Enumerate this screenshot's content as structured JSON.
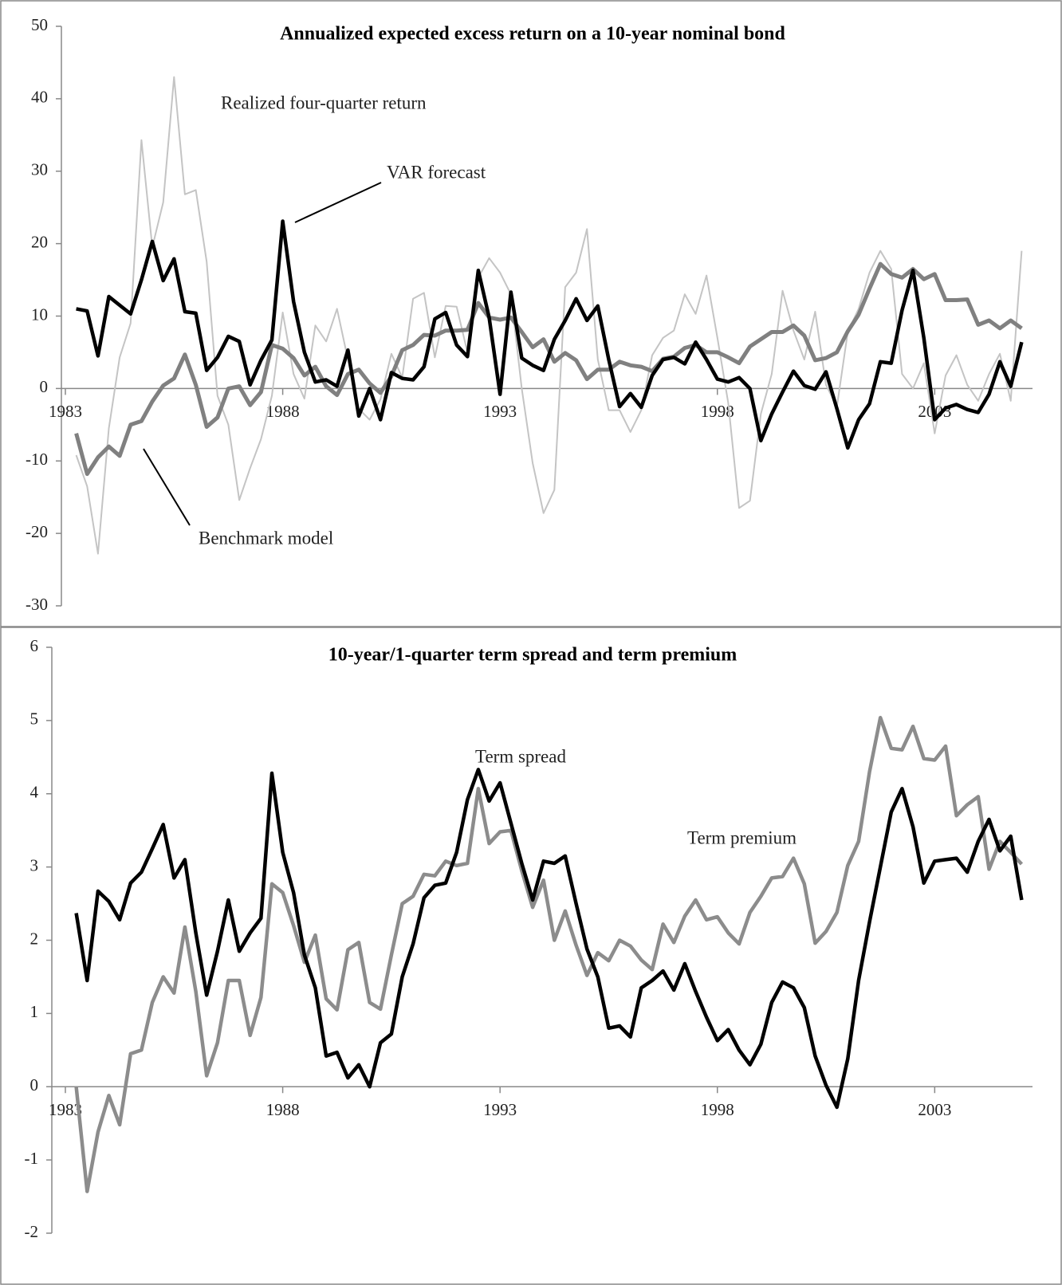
{
  "chart_data": [
    {
      "type": "line",
      "title": "Annualized expected excess return on a 10-year nominal bond",
      "x": [
        1983.25,
        1983.5,
        1983.75,
        1984,
        1984.25,
        1984.5,
        1984.75,
        1985,
        1985.25,
        1985.5,
        1985.75,
        1986,
        1986.25,
        1986.5,
        1986.75,
        1987,
        1987.25,
        1987.5,
        1987.75,
        1988,
        1988.25,
        1988.5,
        1988.75,
        1989,
        1989.25,
        1989.5,
        1989.75,
        1990,
        1990.25,
        1990.5,
        1990.75,
        1991,
        1991.25,
        1991.5,
        1991.75,
        1992,
        1992.25,
        1992.5,
        1992.75,
        1993,
        1993.25,
        1993.5,
        1993.75,
        1994,
        1994.25,
        1994.5,
        1994.75,
        1995,
        1995.25,
        1995.5,
        1995.75,
        1996,
        1996.25,
        1996.5,
        1996.75,
        1997,
        1997.25,
        1997.5,
        1997.75,
        1998,
        1998.25,
        1998.5,
        1998.75,
        1999,
        1999.25,
        1999.5,
        1999.75,
        2000,
        2000.25,
        2000.5,
        2000.75,
        2001,
        2001.25,
        2001.5,
        2001.75,
        2002,
        2002.25,
        2002.5,
        2002.75,
        2003,
        2003.25,
        2003.5,
        2003.75,
        2004,
        2004.25,
        2004.5,
        2004.75,
        2005
      ],
      "xlim": [
        1983,
        2005.25
      ],
      "xticks": [
        1983,
        1988,
        1993,
        1998,
        2003
      ],
      "ylim": [
        -30,
        50
      ],
      "yticks": [
        -30,
        -20,
        -10,
        0,
        10,
        20,
        30,
        40,
        50
      ],
      "series": [
        {
          "name": "Realized four-quarter return",
          "color": "#c4c4c4",
          "values": [
            -9.2,
            -13.5,
            -22.8,
            -5.5,
            4.3,
            9,
            34.3,
            19.5,
            25.7,
            43,
            26.8,
            27.4,
            17.5,
            -1,
            -5,
            -15.4,
            -11,
            -7,
            -1,
            10.5,
            2,
            -1.4,
            8.7,
            6.5,
            11,
            4,
            -2.8,
            -4.3,
            -1.5,
            4.8,
            1.5,
            12.4,
            13.2,
            4.3,
            11.4,
            11.3,
            5,
            15.3,
            18,
            16,
            13,
            0,
            -10.3,
            -17.2,
            -14,
            14,
            16,
            22,
            4,
            -3,
            -3,
            -6,
            -3,
            4.6,
            7,
            8,
            13,
            10.3,
            15.6,
            7,
            -2,
            -16.5,
            -15.5,
            -3.5,
            2,
            13.5,
            8,
            4,
            10.6,
            0.5,
            -2.5,
            7.8,
            11,
            16,
            19,
            16.5,
            2,
            0,
            3.5,
            -6.2,
            1.8,
            4.6,
            0.5,
            -1.7,
            2,
            4.8,
            -1.7,
            19
          ]
        },
        {
          "name": "Benchmark model",
          "color": "#808080",
          "values": [
            -6.2,
            -11.8,
            -9.5,
            -8,
            -9.3,
            -5,
            -4.5,
            -1.8,
            0.4,
            1.4,
            4.7,
            0.5,
            -5.3,
            -4,
            0,
            0.3,
            -2.3,
            -0.5,
            6,
            5.5,
            4.2,
            1.8,
            3,
            0.3,
            -0.9,
            2,
            2.6,
            0.7,
            -0.6,
            1.7,
            5.3,
            6,
            7.4,
            7.3,
            8,
            8,
            8.1,
            11.8,
            9.8,
            9.5,
            9.8,
            7.8,
            5.7,
            6.8,
            3.7,
            4.9,
            3.9,
            1.3,
            2.6,
            2.6,
            3.7,
            3.2,
            3,
            2.4,
            4.1,
            4.4,
            5.6,
            6,
            5,
            5,
            4.3,
            3.5,
            5.8,
            6.8,
            7.8,
            7.8,
            8.7,
            7.3,
            3.9,
            4.2,
            5,
            7.9,
            10.2,
            13.8,
            17.2,
            15.8,
            15.3,
            16.5,
            15.1,
            15.8,
            12.2,
            12.2,
            12.3,
            8.8,
            9.4,
            8.3,
            9.4,
            8.3
          ]
        },
        {
          "name": "VAR forecast",
          "color": "#000000",
          "values": [
            11,
            10.7,
            4.5,
            12.7,
            11.5,
            10.3,
            15,
            20.3,
            14.9,
            17.9,
            10.6,
            10.4,
            2.5,
            4.3,
            7.2,
            6.5,
            0.5,
            3.9,
            6.7,
            23.1,
            12,
            5,
            0.9,
            1.2,
            0.3,
            5.3,
            -3.8,
            0,
            -4.3,
            2.2,
            1.4,
            1.2,
            3,
            9.6,
            10.5,
            6,
            4.4,
            16.3,
            9.8,
            -0.8,
            13.3,
            4.2,
            3.2,
            2.5,
            6.8,
            9.4,
            12.4,
            9.4,
            11.4,
            4,
            -2.5,
            -0.7,
            -2.6,
            1.8,
            4,
            4.3,
            3.4,
            6.4,
            4,
            1.3,
            0.9,
            1.5,
            0,
            -7.2,
            -3.5,
            -0.5,
            2.4,
            0.4,
            -0.1,
            2.3,
            -2.8,
            -8.2,
            -4.3,
            -2.1,
            3.7,
            3.5,
            10.8,
            16.3,
            7,
            -4.3,
            -2.7,
            -2.2,
            -2.9,
            -3.3,
            -0.8,
            3.7,
            0.3,
            6.4
          ]
        }
      ]
    },
    {
      "type": "line",
      "title": "10-year/1-quarter term spread and term premium",
      "x": [
        1983.25,
        1983.5,
        1983.75,
        1984,
        1984.25,
        1984.5,
        1984.75,
        1985,
        1985.25,
        1985.5,
        1985.75,
        1986,
        1986.25,
        1986.5,
        1986.75,
        1987,
        1987.25,
        1987.5,
        1987.75,
        1988,
        1988.25,
        1988.5,
        1988.75,
        1989,
        1989.25,
        1989.5,
        1989.75,
        1990,
        1990.25,
        1990.5,
        1990.75,
        1991,
        1991.25,
        1991.5,
        1991.75,
        1992,
        1992.25,
        1992.5,
        1992.75,
        1993,
        1993.25,
        1993.5,
        1993.75,
        1994,
        1994.25,
        1994.5,
        1994.75,
        1995,
        1995.25,
        1995.5,
        1995.75,
        1996,
        1996.25,
        1996.5,
        1996.75,
        1997,
        1997.25,
        1997.5,
        1997.75,
        1998,
        1998.25,
        1998.5,
        1998.75,
        1999,
        1999.25,
        1999.5,
        1999.75,
        2000,
        2000.25,
        2000.5,
        2000.75,
        2001,
        2001.25,
        2001.5,
        2001.75,
        2002,
        2002.25,
        2002.5,
        2002.75,
        2003,
        2003.25,
        2003.5,
        2003.75,
        2004,
        2004.25,
        2004.5,
        2004.75,
        2005
      ],
      "xlim": [
        1983,
        2005.25
      ],
      "xticks": [
        1983,
        1988,
        1993,
        1998,
        2003
      ],
      "ylim": [
        -2,
        6
      ],
      "yticks": [
        -2,
        -1,
        0,
        1,
        2,
        3,
        4,
        5,
        6
      ],
      "series": [
        {
          "name": "Term premium",
          "color": "#8c8c8c",
          "values": [
            0,
            -1.43,
            -0.62,
            -0.12,
            -0.52,
            0.45,
            0.5,
            1.15,
            1.5,
            1.28,
            2.18,
            1.3,
            0.15,
            0.6,
            1.45,
            1.45,
            0.7,
            1.22,
            2.77,
            2.65,
            2.2,
            1.7,
            2.07,
            1.2,
            1.05,
            1.87,
            1.97,
            1.15,
            1.06,
            1.8,
            2.5,
            2.6,
            2.9,
            2.88,
            3.08,
            3.02,
            3.05,
            4.07,
            3.32,
            3.48,
            3.5,
            2.95,
            2.45,
            2.82,
            2.0,
            2.4,
            1.93,
            1.52,
            1.83,
            1.72,
            2.0,
            1.92,
            1.73,
            1.6,
            2.22,
            1.97,
            2.33,
            2.55,
            2.28,
            2.32,
            2.1,
            1.95,
            2.38,
            2.6,
            2.85,
            2.87,
            3.12,
            2.77,
            1.96,
            2.12,
            2.38,
            3.02,
            3.35,
            4.3,
            5.04,
            4.62,
            4.6,
            4.92,
            4.48,
            4.46,
            4.65,
            3.7,
            3.85,
            3.96,
            2.97,
            3.35,
            3.2,
            3.04
          ]
        },
        {
          "name": "Term spread",
          "color": "#000000",
          "values": [
            2.37,
            1.45,
            2.67,
            2.53,
            2.28,
            2.78,
            2.93,
            3.25,
            3.58,
            2.85,
            3.1,
            2.1,
            1.25,
            1.85,
            2.55,
            1.85,
            2.1,
            2.3,
            4.28,
            3.2,
            2.65,
            1.8,
            1.35,
            0.42,
            0.47,
            0.12,
            0.3,
            0,
            0.6,
            0.72,
            1.5,
            1.95,
            2.58,
            2.75,
            2.78,
            3.2,
            3.92,
            4.33,
            3.9,
            4.15,
            3.6,
            3.05,
            2.55,
            3.08,
            3.05,
            3.15,
            2.5,
            1.88,
            1.5,
            0.8,
            0.83,
            0.68,
            1.35,
            1.45,
            1.58,
            1.32,
            1.68,
            1.3,
            0.95,
            0.63,
            0.78,
            0.5,
            0.3,
            0.58,
            1.15,
            1.43,
            1.35,
            1.08,
            0.42,
            0.02,
            -0.28,
            0.38,
            1.45,
            2.25,
            3.0,
            3.75,
            4.07,
            3.55,
            2.78,
            3.08,
            3.1,
            3.12,
            2.93,
            3.35,
            3.65,
            3.22,
            3.42,
            2.55
          ]
        }
      ]
    }
  ]
}
